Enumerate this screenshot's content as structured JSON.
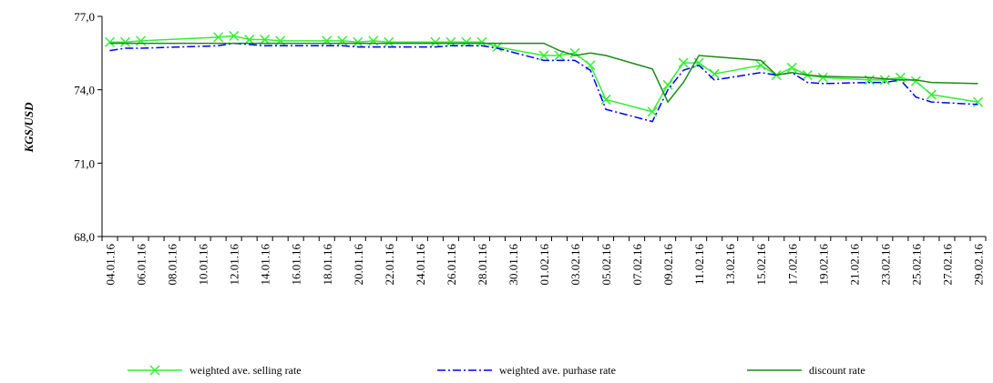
{
  "chart_data": {
    "type": "line",
    "y_label": "KGS/USD",
    "x": [
      "04.01.16",
      "05.01.16",
      "06.01.16",
      "11.01.16",
      "12.01.16",
      "13.01.16",
      "14.01.16",
      "15.01.16",
      "18.01.16",
      "19.01.16",
      "20.01.16",
      "21.01.16",
      "22.01.16",
      "25.01.16",
      "26.01.16",
      "27.01.16",
      "28.01.16",
      "29.01.16",
      "01.02.16",
      "02.02.16",
      "03.02.16",
      "04.02.16",
      "05.02.16",
      "08.02.16",
      "09.02.16",
      "10.02.16",
      "11.02.16",
      "12.02.16",
      "15.02.16",
      "16.02.16",
      "17.02.16",
      "18.02.16",
      "19.02.16",
      "22.02.16",
      "23.02.16",
      "24.02.16",
      "25.02.16",
      "26.02.16",
      "29.02.16"
    ],
    "xlim": [
      "04.01.16",
      "29.02.16"
    ],
    "xticks": [
      "04.01.16",
      "06.01.16",
      "08.01.16",
      "10.01.16",
      "12.01.16",
      "14.01.16",
      "16.01.16",
      "18.01.16",
      "20.01.16",
      "22.01.16",
      "24.01.16",
      "26.01.16",
      "28.01.16",
      "30.01.16",
      "01.02.16",
      "03.02.16",
      "05.02.16",
      "07.02.16",
      "09.02.16",
      "11.02.16",
      "13.02.16",
      "15.02.16",
      "17.02.16",
      "19.02.16",
      "21.02.16",
      "23.02.16",
      "25.02.16",
      "27.02.16",
      "29.02.16"
    ],
    "ylim": [
      68,
      77
    ],
    "yticks": [
      {
        "value": 68,
        "label": "68,0"
      },
      {
        "value": 71,
        "label": "71,0"
      },
      {
        "value": 74,
        "label": "74,0"
      },
      {
        "value": 77,
        "label": "77,0"
      }
    ],
    "legend": "bottom",
    "series": [
      {
        "name": "weighted ave. selling rate",
        "color": "#33ee33",
        "marker": "x",
        "dash": "solid",
        "values": [
          75.95,
          75.95,
          76.0,
          76.15,
          76.2,
          76.05,
          76.05,
          76.0,
          76.0,
          76.0,
          75.95,
          76.0,
          75.95,
          75.95,
          75.95,
          75.95,
          75.95,
          75.75,
          75.4,
          75.4,
          75.5,
          75.0,
          73.6,
          73.1,
          74.2,
          75.1,
          75.1,
          74.65,
          75.0,
          74.6,
          74.9,
          74.6,
          74.5,
          74.4,
          74.4,
          74.5,
          74.35,
          73.8,
          73.5
        ]
      },
      {
        "name": "weighted ave. purhase rate",
        "color": "#0000ff",
        "marker": "none",
        "dash": "dashdot",
        "values": [
          75.6,
          75.7,
          75.7,
          75.8,
          75.9,
          75.85,
          75.8,
          75.8,
          75.8,
          75.8,
          75.75,
          75.75,
          75.75,
          75.75,
          75.8,
          75.8,
          75.8,
          75.7,
          75.2,
          75.2,
          75.2,
          74.8,
          73.2,
          72.7,
          74.0,
          74.8,
          75.0,
          74.4,
          74.7,
          74.6,
          74.7,
          74.3,
          74.25,
          74.3,
          74.3,
          74.4,
          73.7,
          73.5,
          73.4
        ]
      },
      {
        "name": "discount rate",
        "color": "#1a8a1a",
        "marker": "none",
        "dash": "solid",
        "values": [
          75.9,
          75.9,
          75.9,
          75.9,
          75.9,
          75.9,
          75.9,
          75.9,
          75.9,
          75.9,
          75.9,
          75.9,
          75.9,
          75.9,
          75.9,
          75.9,
          75.9,
          75.9,
          75.9,
          75.6,
          75.4,
          75.5,
          75.4,
          74.85,
          73.5,
          74.3,
          75.4,
          75.35,
          75.2,
          74.6,
          74.7,
          74.6,
          74.55,
          74.5,
          74.45,
          74.4,
          74.4,
          74.3,
          74.25
        ]
      }
    ]
  }
}
